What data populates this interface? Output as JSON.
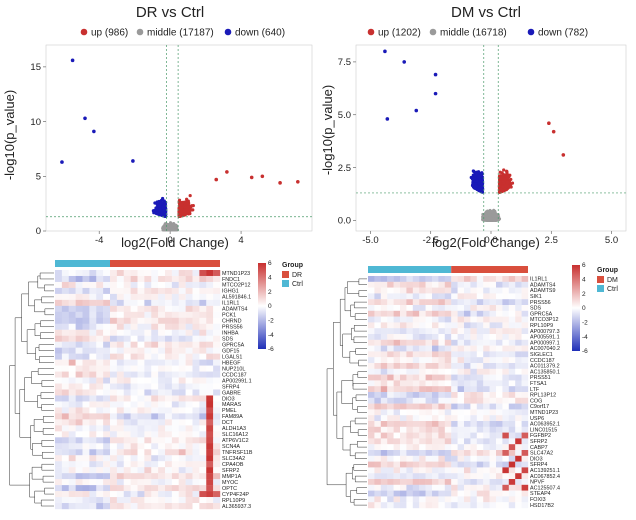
{
  "chart_data": [
    {
      "type": "scatter",
      "title": "DR vs Ctrl",
      "xlabel": "log2(Fold Change)",
      "ylabel": "-log10(p_value)",
      "xlim": [
        -7,
        8
      ],
      "ylim": [
        0,
        17
      ],
      "xticks": [
        -4,
        0,
        4
      ],
      "yticks": [
        0,
        5,
        10,
        15
      ],
      "threshold_y": 1.3,
      "threshold_x": [
        -0.2,
        0.45
      ],
      "legend_position": "top",
      "series": [
        {
          "name": "up (986)",
          "color": "#c8302f"
        },
        {
          "name": "middle (17187)",
          "color": "#9a9a9a"
        },
        {
          "name": "down (640)",
          "color": "#1a1ab8"
        }
      ],
      "highlight_points": [
        {
          "x": -5.5,
          "y": 15.6,
          "group": "down"
        },
        {
          "x": -4.8,
          "y": 10.3,
          "group": "down"
        },
        {
          "x": -4.3,
          "y": 9.1,
          "group": "down"
        },
        {
          "x": -6.1,
          "y": 6.3,
          "group": "down"
        },
        {
          "x": -2.1,
          "y": 6.4,
          "group": "down"
        },
        {
          "x": 4.6,
          "y": 4.9,
          "group": "up"
        },
        {
          "x": 5.2,
          "y": 5.0,
          "group": "up"
        },
        {
          "x": 6.2,
          "y": 4.4,
          "group": "up"
        },
        {
          "x": 7.2,
          "y": 4.5,
          "group": "up"
        },
        {
          "x": 3.2,
          "y": 5.4,
          "group": "up"
        },
        {
          "x": 2.6,
          "y": 4.7,
          "group": "up"
        }
      ]
    },
    {
      "type": "scatter",
      "title": "DM vs Ctrl",
      "xlabel": "log2(Fold Change)",
      "ylabel": "-log10(p_value)",
      "xlim": [
        -5.6,
        5.6
      ],
      "ylim": [
        -0.5,
        8.3
      ],
      "xticks": [
        -5.0,
        -2.5,
        0.0,
        2.5,
        5.0
      ],
      "ytick_labels": [
        "0.0",
        "2.5",
        "5.0",
        "7.5"
      ],
      "yticks": [
        0.0,
        2.5,
        5.0,
        7.5
      ],
      "threshold_y": 1.3,
      "threshold_x": [
        -0.3,
        0.3
      ],
      "legend_position": "top",
      "series": [
        {
          "name": "up (1202)",
          "color": "#c8302f"
        },
        {
          "name": "middle (16718)",
          "color": "#9a9a9a"
        },
        {
          "name": "down (782)",
          "color": "#1a1ab8"
        }
      ],
      "highlight_points": [
        {
          "x": -4.4,
          "y": 8.0,
          "group": "down"
        },
        {
          "x": -3.6,
          "y": 7.5,
          "group": "down"
        },
        {
          "x": -2.3,
          "y": 6.9,
          "group": "down"
        },
        {
          "x": -2.3,
          "y": 6.0,
          "group": "down"
        },
        {
          "x": -4.3,
          "y": 4.8,
          "group": "down"
        },
        {
          "x": -3.1,
          "y": 5.2,
          "group": "down"
        },
        {
          "x": 2.4,
          "y": 4.6,
          "group": "up"
        },
        {
          "x": 2.6,
          "y": 4.2,
          "group": "up"
        },
        {
          "x": 3.0,
          "y": 3.1,
          "group": "up"
        }
      ]
    },
    {
      "type": "heatmap",
      "title": "",
      "group_title": "Group",
      "groups": [
        {
          "name": "DR",
          "color": "#d94f3d"
        },
        {
          "name": "Ctrl",
          "color": "#4fb8d4"
        }
      ],
      "top_bar": [
        {
          "group": "Ctrl",
          "count": 8
        },
        {
          "group": "DR",
          "count": 16
        }
      ],
      "colorbar_ticks": [
        "6",
        "4",
        "2",
        "0",
        "-2",
        "-4",
        "-6"
      ],
      "colorbar_colors": [
        "#c8302f",
        "#ffffff",
        "#1f2fb8"
      ],
      "rows": [
        "MTND1P23",
        "FNDC1",
        "MTCO2P12",
        "IGHG1",
        "AL591846.1",
        "IL1RL1",
        "ADAMTS4",
        "PCK1",
        "CHRND",
        "PRSS56",
        "INHBA",
        "SDS",
        "GPRC5A",
        "GDF15",
        "LGALS1",
        "HBEGF",
        "NUP210L",
        "CCDC187",
        "AP002991.1",
        "SFRP4",
        "GABRE",
        "DIO3",
        "MARAS",
        "PMEL",
        "FAM89A",
        "DCT",
        "ALDH1A3",
        "SLC16A12",
        "ATP6V1C2",
        "SCN4A",
        "TNFRSF11B",
        "SLC34A2",
        "CPA4OB",
        "SFRP2",
        "MMP1A",
        "MYOC",
        "OPTC",
        "CYP4F24P",
        "RPL10P9",
        "AL365937.3"
      ]
    },
    {
      "type": "heatmap",
      "title": "",
      "group_title": "Group",
      "groups": [
        {
          "name": "DM",
          "color": "#d94f3d"
        },
        {
          "name": "Ctrl",
          "color": "#4fb8d4"
        }
      ],
      "top_bar": [
        {
          "group": "Ctrl",
          "count": 13
        },
        {
          "group": "DM",
          "count": 12
        }
      ],
      "colorbar_ticks": [
        "6",
        "4",
        "2",
        "0",
        "-2",
        "-4",
        "-6"
      ],
      "colorbar_colors": [
        "#c8302f",
        "#ffffff",
        "#1f2fb8"
      ],
      "rows": [
        "IL1RL1",
        "ADAMTS4",
        "ADAMTS9",
        "SIK1",
        "PRSS56",
        "SDS",
        "GPRC5A",
        "MTCO3P12",
        "RPL10P9",
        "AP000797.3",
        "AP005591.1",
        "AP000997.1",
        "AC007040.2",
        "SIGLEC1",
        "CCDC187",
        "AC011379.2",
        "AC135850.1",
        "PRSS51",
        "FTSA1",
        "LTF",
        "RPL13P12",
        "COG",
        "C9orf17",
        "MTND1P23",
        "USP6",
        "AC063952.1",
        "LINC01515",
        "FGFBP2",
        "SFRP2",
        "CABP7",
        "SLC47A2",
        "DIO3",
        "SFRP4",
        "AC139251.1",
        "AC067852.4",
        "NPVF",
        "AC125507.4",
        "STEAP4",
        "FOXI3",
        "HSD17B2"
      ]
    }
  ]
}
